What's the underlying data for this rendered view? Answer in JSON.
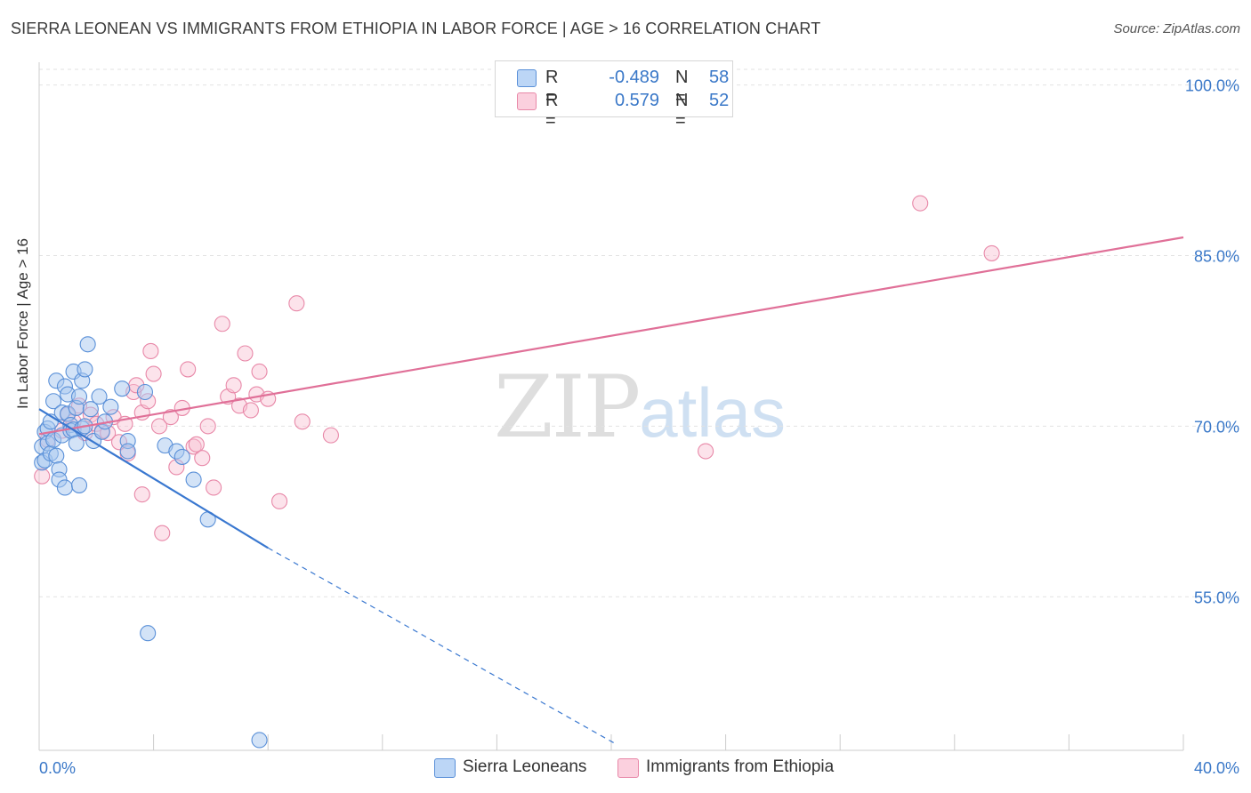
{
  "header": {
    "title": "SIERRA LEONEAN VS IMMIGRANTS FROM ETHIOPIA IN LABOR FORCE | AGE > 16 CORRELATION CHART",
    "source": "Source: ZipAtlas.com"
  },
  "watermark": {
    "zip": "ZIP",
    "atlas": "atlas"
  },
  "legend": {
    "rows": [
      {
        "r_label": "R =",
        "r_value": "-0.489",
        "n_label": "N =",
        "n_value": "58",
        "color": "#a8c8f0"
      },
      {
        "r_label": "R =",
        "r_value": "0.579",
        "n_label": "N =",
        "n_value": "52",
        "color": "#f8bcd0"
      }
    ]
  },
  "bottom_legend": {
    "sierra": "Sierra Leoneans",
    "ethiopia": "Immigrants from Ethiopia"
  },
  "chart_data": {
    "type": "scatter",
    "title": "SIERRA LEONEAN VS IMMIGRANTS FROM ETHIOPIA IN LABOR FORCE | AGE > 16 CORRELATION CHART",
    "xlabel": "",
    "ylabel": "In Labor Force | Age > 16",
    "xlim": [
      0,
      40
    ],
    "ylim": [
      41.5,
      102
    ],
    "x_tick_labels": [
      "0.0%",
      "40.0%"
    ],
    "y_ticks": [
      55,
      70,
      85,
      100
    ],
    "y_tick_labels": [
      "55.0%",
      "70.0%",
      "85.0%",
      "100.0%"
    ],
    "grid": true,
    "colors": {
      "sierra_fill": "#a8c8f0",
      "sierra_stroke": "#5a90d8",
      "sierra_line": "#3a78d0",
      "ethiopia_fill": "#f8c0d2",
      "ethiopia_stroke": "#e888a8",
      "ethiopia_line": "#e07098",
      "grid": "#e2e2e2",
      "axis": "#cccccc",
      "tick_label": "#3a78c8"
    },
    "series": [
      {
        "name": "Sierra Leoneans",
        "trend": {
          "x": [
            0.0,
            8.0
          ],
          "y": [
            71.5,
            59.3
          ],
          "dashed_to": [
            20.2,
            42.0
          ]
        },
        "points": [
          [
            0.1,
            66.8
          ],
          [
            0.1,
            68.2
          ],
          [
            0.2,
            69.5
          ],
          [
            0.2,
            67.0
          ],
          [
            0.3,
            69.8
          ],
          [
            0.3,
            68.5
          ],
          [
            0.4,
            67.6
          ],
          [
            0.4,
            70.4
          ],
          [
            0.5,
            72.2
          ],
          [
            0.5,
            68.8
          ],
          [
            0.6,
            67.4
          ],
          [
            0.6,
            74.0
          ],
          [
            0.7,
            66.2
          ],
          [
            0.7,
            65.3
          ],
          [
            0.8,
            71.2
          ],
          [
            0.8,
            69.2
          ],
          [
            0.9,
            64.6
          ],
          [
            0.9,
            73.5
          ],
          [
            1.0,
            71.1
          ],
          [
            1.0,
            72.8
          ],
          [
            1.1,
            70.1
          ],
          [
            1.1,
            69.6
          ],
          [
            1.2,
            74.8
          ],
          [
            1.2,
            69.7
          ],
          [
            1.3,
            71.6
          ],
          [
            1.3,
            68.5
          ],
          [
            1.4,
            72.6
          ],
          [
            1.4,
            64.8
          ],
          [
            1.5,
            74.0
          ],
          [
            1.5,
            69.8
          ],
          [
            1.6,
            75.0
          ],
          [
            1.6,
            70.0
          ],
          [
            1.7,
            77.2
          ],
          [
            1.8,
            71.5
          ],
          [
            1.9,
            68.7
          ],
          [
            2.1,
            72.6
          ],
          [
            2.2,
            69.5
          ],
          [
            2.3,
            70.4
          ],
          [
            2.5,
            71.7
          ],
          [
            2.9,
            73.3
          ],
          [
            3.1,
            68.7
          ],
          [
            3.1,
            67.8
          ],
          [
            3.7,
            73.0
          ],
          [
            4.4,
            68.3
          ],
          [
            4.8,
            67.8
          ],
          [
            5.0,
            67.3
          ],
          [
            5.4,
            65.3
          ],
          [
            5.9,
            61.8
          ],
          [
            3.8,
            51.8
          ],
          [
            7.7,
            42.4
          ]
        ]
      },
      {
        "name": "Immigrants from Ethiopia",
        "trend": {
          "x": [
            0.0,
            40.0
          ],
          "y": [
            69.3,
            86.6
          ]
        },
        "points": [
          [
            0.1,
            65.6
          ],
          [
            0.3,
            68.8
          ],
          [
            0.8,
            69.6
          ],
          [
            1.0,
            71.0
          ],
          [
            1.2,
            70.4
          ],
          [
            1.4,
            71.8
          ],
          [
            1.6,
            69.4
          ],
          [
            1.8,
            71.0
          ],
          [
            2.0,
            70.2
          ],
          [
            2.2,
            69.6
          ],
          [
            2.4,
            69.4
          ],
          [
            2.6,
            70.8
          ],
          [
            2.8,
            68.6
          ],
          [
            3.0,
            70.2
          ],
          [
            3.1,
            67.6
          ],
          [
            3.3,
            73.0
          ],
          [
            3.4,
            73.6
          ],
          [
            3.6,
            71.2
          ],
          [
            3.6,
            64.0
          ],
          [
            3.8,
            72.2
          ],
          [
            3.9,
            76.6
          ],
          [
            4.0,
            74.6
          ],
          [
            4.2,
            70.0
          ],
          [
            4.3,
            60.6
          ],
          [
            4.6,
            70.8
          ],
          [
            4.8,
            66.4
          ],
          [
            5.0,
            71.6
          ],
          [
            5.2,
            75.0
          ],
          [
            5.4,
            68.2
          ],
          [
            5.5,
            68.4
          ],
          [
            5.7,
            67.2
          ],
          [
            5.9,
            70.0
          ],
          [
            6.1,
            64.6
          ],
          [
            6.4,
            79.0
          ],
          [
            6.6,
            72.6
          ],
          [
            6.8,
            73.6
          ],
          [
            7.0,
            71.8
          ],
          [
            7.2,
            76.4
          ],
          [
            7.4,
            71.4
          ],
          [
            7.6,
            72.8
          ],
          [
            7.7,
            74.8
          ],
          [
            8.0,
            72.4
          ],
          [
            8.4,
            63.4
          ],
          [
            9.0,
            80.8
          ],
          [
            9.2,
            70.4
          ],
          [
            10.2,
            69.2
          ],
          [
            23.3,
            67.8
          ],
          [
            30.8,
            89.6
          ],
          [
            33.3,
            85.2
          ]
        ]
      }
    ]
  }
}
